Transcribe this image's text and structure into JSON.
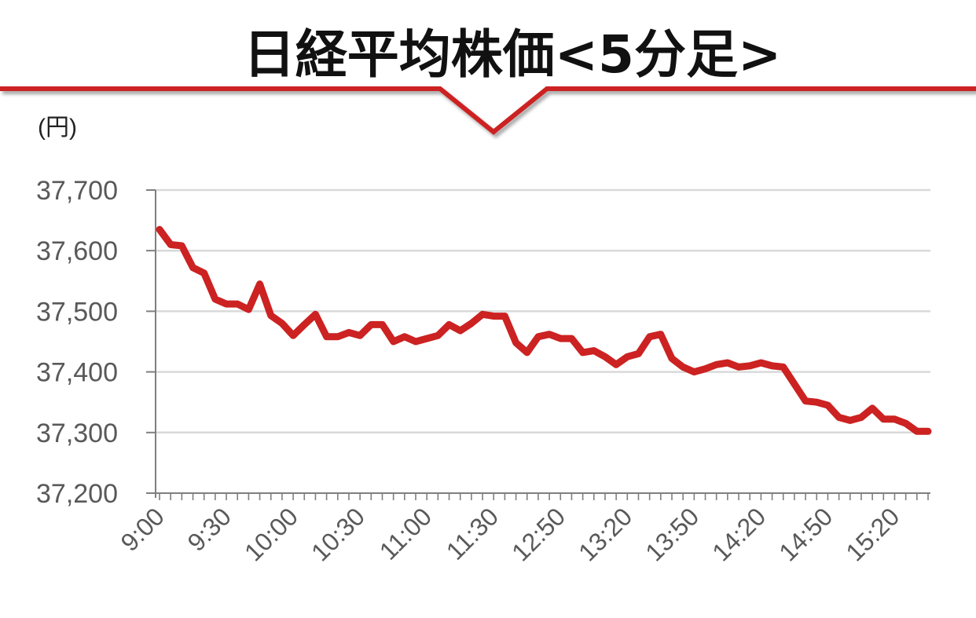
{
  "chart_data": {
    "type": "line",
    "title": "日経平均株価<5分足>",
    "ylabel": "(円)",
    "xlabel": "",
    "ylim": [
      37200,
      37700
    ],
    "yticks": [
      37200,
      37300,
      37400,
      37500,
      37600,
      37700
    ],
    "ytick_labels": [
      "37,200",
      "37,300",
      "37,400",
      "37,500",
      "37,600",
      "37,700"
    ],
    "xtick_labels": [
      "9:00",
      "9:30",
      "10:00",
      "10:30",
      "11:00",
      "11:30",
      "12:50",
      "13:20",
      "13:50",
      "14:20",
      "14:50",
      "15:20"
    ],
    "grid": true,
    "colors": {
      "line": "#cc2222",
      "grid": "#d9d9d9",
      "axis": "#7f7f7f",
      "banner": "#cc2222"
    },
    "series": [
      {
        "values": [
          37635,
          37610,
          37608,
          37572,
          37563,
          37520,
          37512,
          37512,
          37503,
          37545,
          37493,
          37480,
          37460,
          37478,
          37495,
          37458,
          37458,
          37465,
          37460,
          37478,
          37478,
          37450,
          37458,
          37450,
          37455,
          37460,
          37478,
          37468,
          37480,
          37495,
          37492,
          37492,
          37448,
          37432,
          37458,
          37462,
          37455,
          37455,
          37432,
          37435,
          37425,
          37412,
          37425,
          37430,
          37458,
          37462,
          37422,
          37408,
          37400,
          37405,
          37412,
          37415,
          37408,
          37410,
          37415,
          37410,
          37408,
          37380,
          37352,
          37350,
          37345,
          37325,
          37320,
          37325,
          37340,
          37322,
          37322,
          37315,
          37302,
          37302
        ]
      }
    ]
  }
}
